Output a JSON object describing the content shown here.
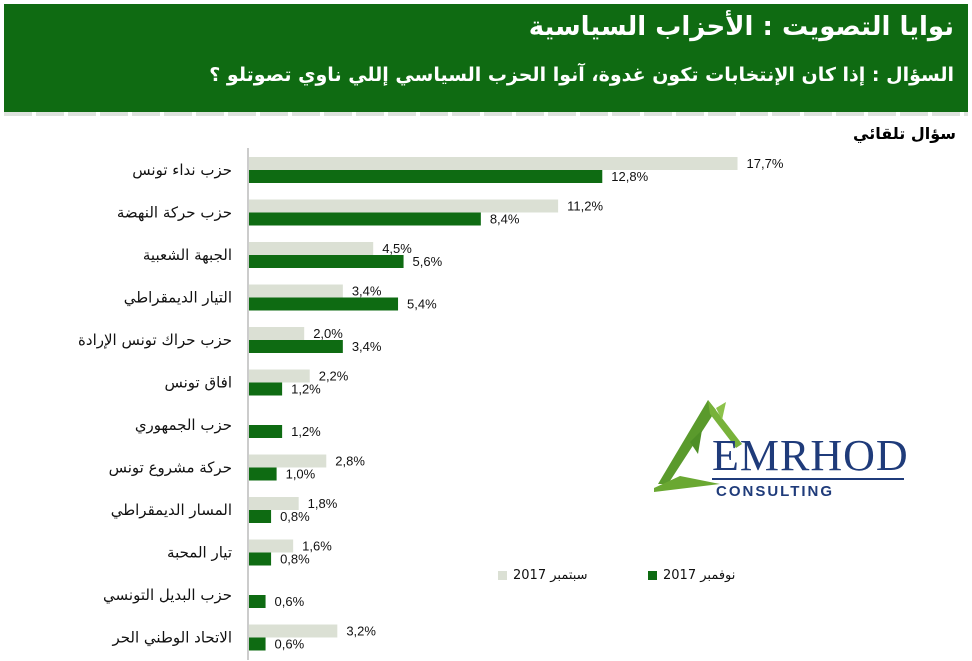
{
  "header": {
    "title": "نوايا التصويت : الأحزاب السياسية",
    "question": "السؤال : إذا كان الإنتخابات تكون غدوة، آنوا الحزب السياسي إللي ناوي تصوتلو ؟",
    "bg_color": "#0f6b12"
  },
  "subtitle": "سؤال تلقائي",
  "logo": {
    "text": "EMRHOD",
    "sub": "CONSULTING",
    "icon": "green-triangle-logo-icon"
  },
  "chart_data": {
    "type": "bar",
    "orientation": "horizontal",
    "categories": [
      "حزب نداء تونس",
      "حزب حركة النهضة",
      "الجبهة الشعبية",
      "التيار الديمقراطي",
      "حزب حراك تونس الإرادة",
      "افاق تونس",
      "حزب الجمهوري",
      "حركة مشروع تونس",
      "المسار الديمقراطي",
      "تيار المحبة",
      "حزب البديل التونسي",
      "الاتحاد الوطني الحر"
    ],
    "series": [
      {
        "name": "سبتمبر 2017",
        "color": "#dbe0d4",
        "values": [
          17.7,
          11.2,
          4.5,
          3.4,
          2.0,
          2.2,
          null,
          2.8,
          1.8,
          1.6,
          null,
          3.2
        ],
        "labels": [
          "17,7%",
          "11,2%",
          "4,5%",
          "3,4%",
          "2,0%",
          "2,2%",
          "",
          "2,8%",
          "1,8%",
          "1,6%",
          "",
          "3,2%"
        ]
      },
      {
        "name": "نوفمبر 2017",
        "color": "#0e6b12",
        "values": [
          12.8,
          8.4,
          5.6,
          5.4,
          3.4,
          1.2,
          1.2,
          1.0,
          0.8,
          0.8,
          0.6,
          0.6
        ],
        "labels": [
          "12,8%",
          "8,4%",
          "5,6%",
          "5,4%",
          "3,4%",
          "1,2%",
          "1,2%",
          "1,0%",
          "0,8%",
          "0,8%",
          "0,6%",
          "0,6%"
        ]
      }
    ],
    "xlim": [
      0,
      20
    ],
    "grid": false,
    "legend_position": "bottom-right"
  }
}
